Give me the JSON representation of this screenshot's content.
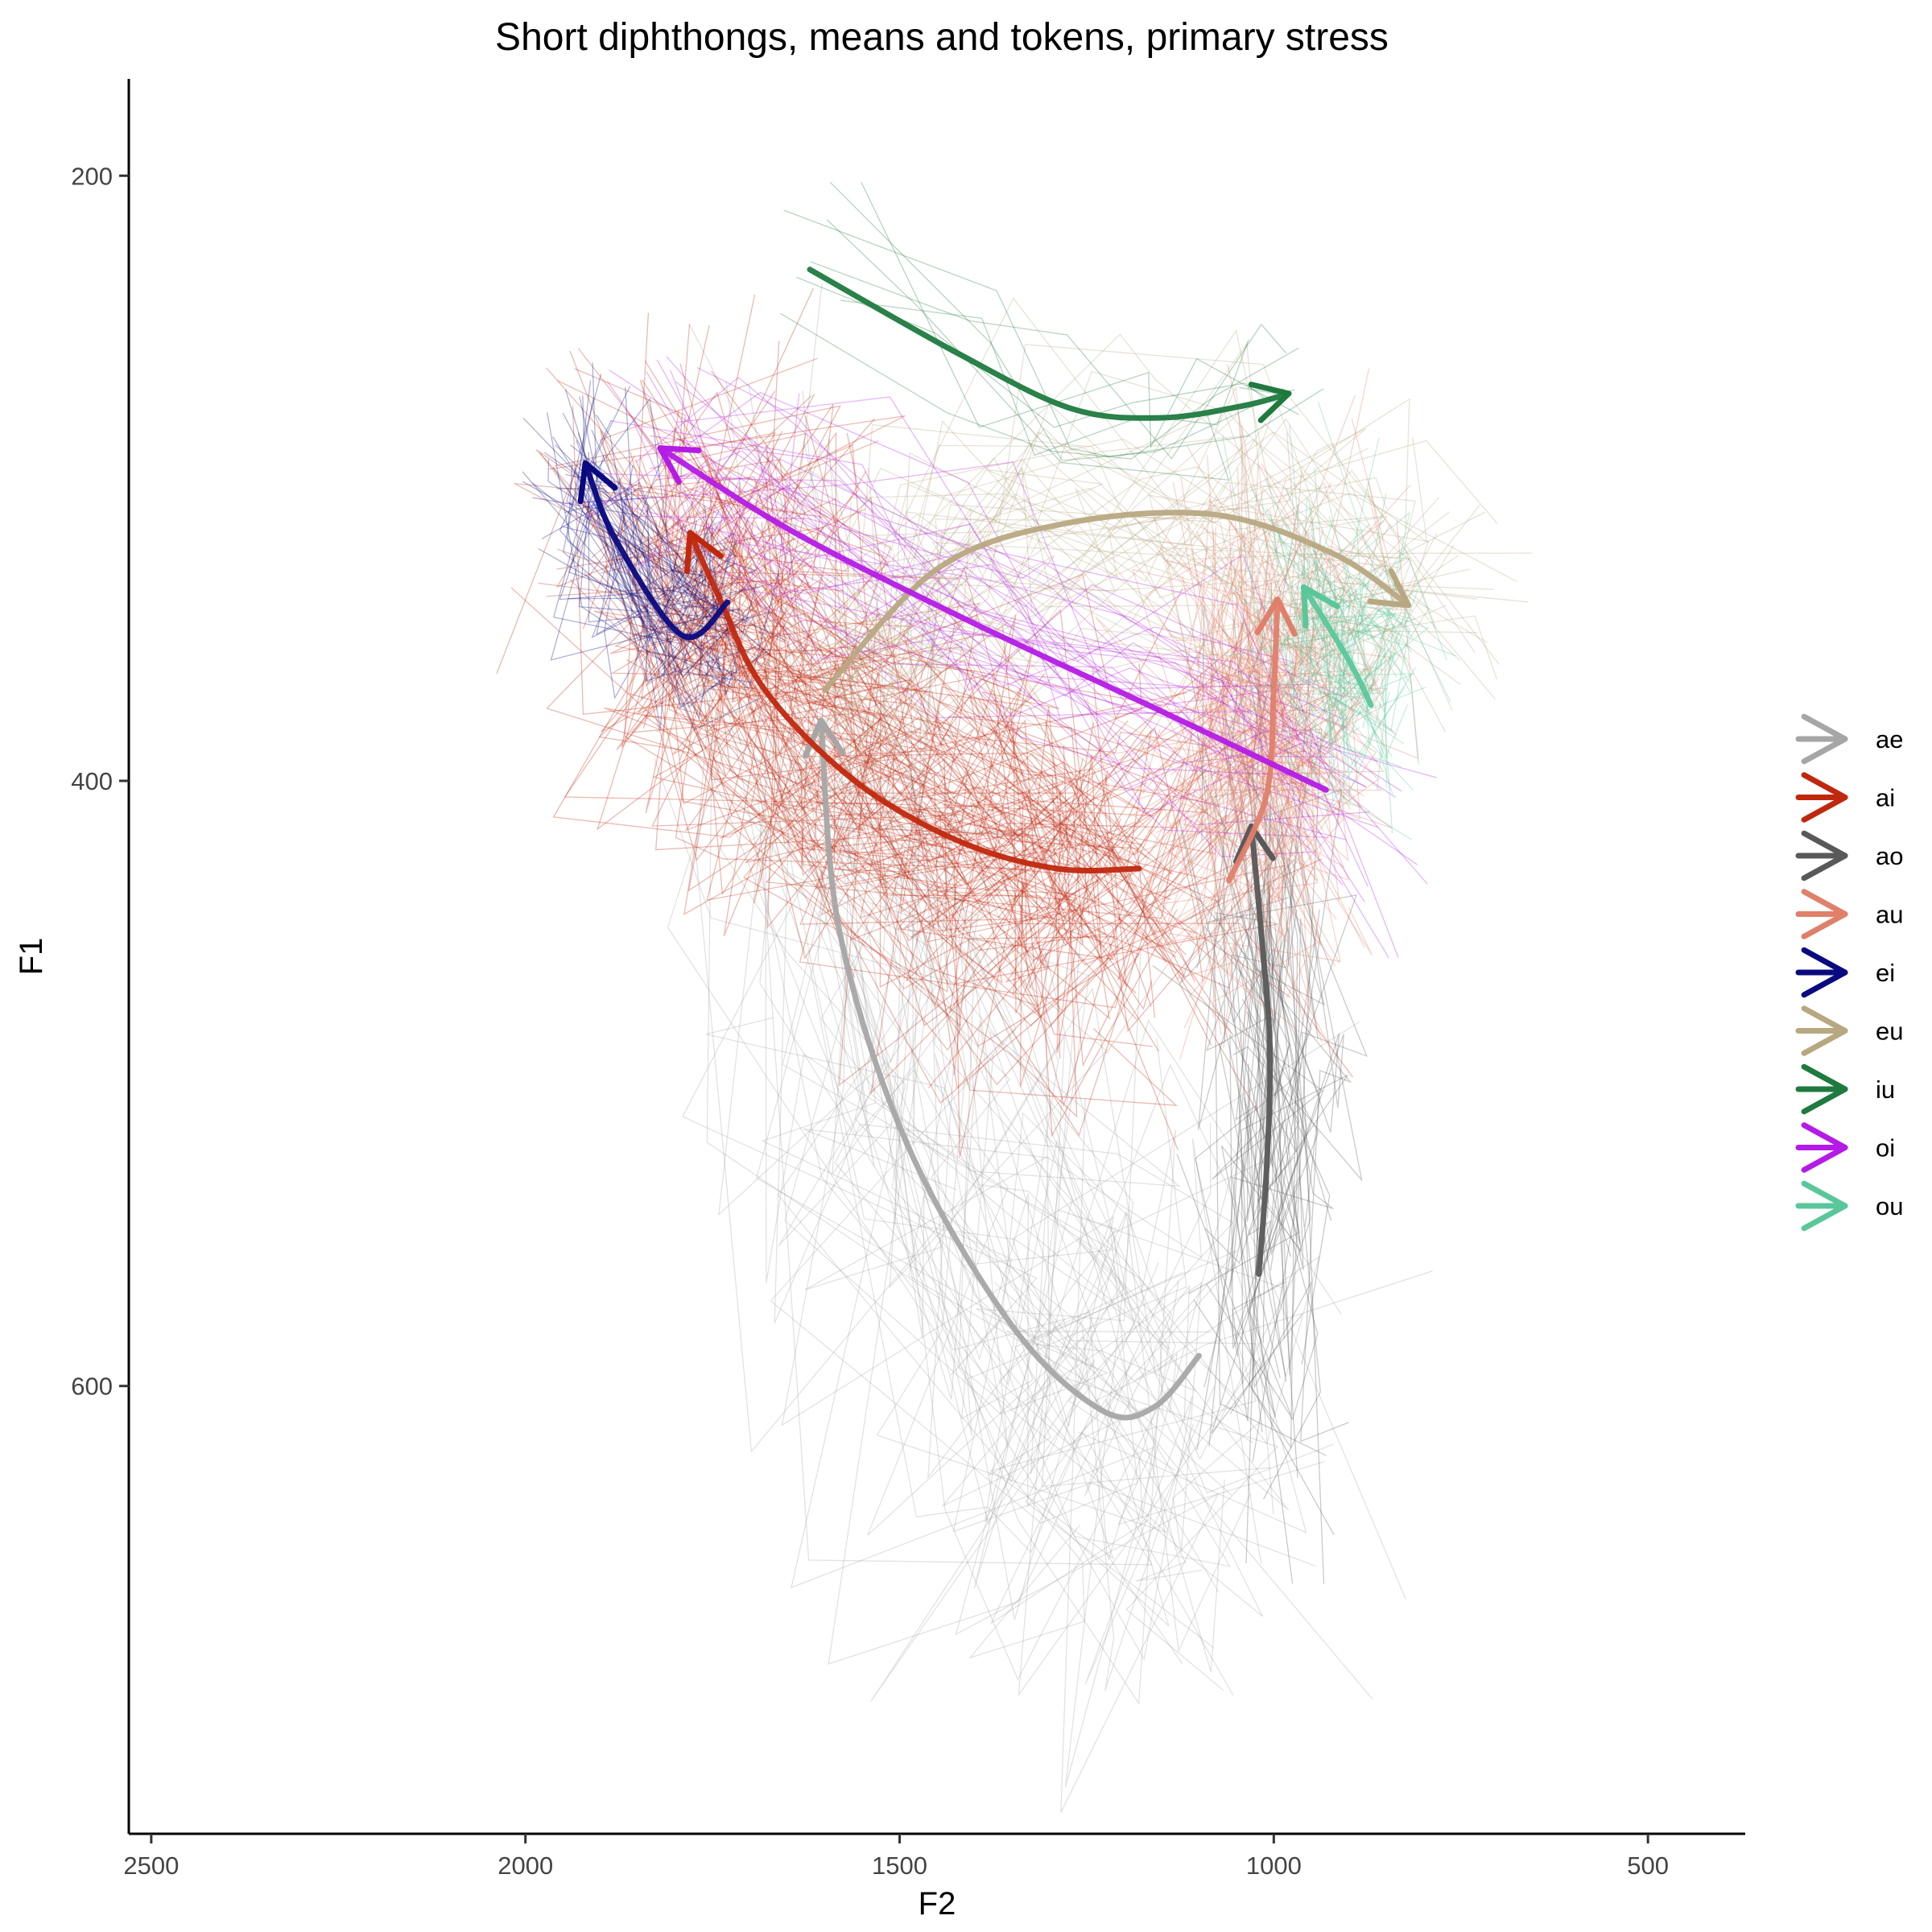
{
  "chart_data": {
    "type": "line",
    "title": "Short diphthongs, means and tokens, primary stress",
    "xlabel": "F2",
    "ylabel": "F1",
    "x_reversed": true,
    "y_reversed": true,
    "xlim": [
      2530,
      370
    ],
    "ylim": [
      168,
      748
    ],
    "x_ticks": [
      2500,
      2000,
      1500,
      1000,
      500
    ],
    "y_ticks": [
      200,
      400,
      600
    ],
    "grid": false,
    "legend_position": "right",
    "series": [
      {
        "name": "ae",
        "color": "#a6a6a6",
        "points": [
          [
            1100,
            590
          ],
          [
            1160,
            607
          ],
          [
            1230,
            608
          ],
          [
            1350,
            580
          ],
          [
            1490,
            520
          ],
          [
            1580,
            450
          ],
          [
            1605,
            380
          ]
        ]
      },
      {
        "name": "ai",
        "color": "#c0280e",
        "points": [
          [
            1180,
            429
          ],
          [
            1290,
            429
          ],
          [
            1420,
            420
          ],
          [
            1560,
            400
          ],
          [
            1680,
            370
          ],
          [
            1740,
            340
          ],
          [
            1780,
            318
          ]
        ]
      },
      {
        "name": "ao",
        "color": "#595959",
        "points": [
          [
            1020,
            563
          ],
          [
            1010,
            530
          ],
          [
            1005,
            490
          ],
          [
            1015,
            455
          ],
          [
            1030,
            415
          ]
        ]
      },
      {
        "name": "au",
        "color": "#e0806a",
        "points": [
          [
            1060,
            433
          ],
          [
            1010,
            405
          ],
          [
            1000,
            370
          ],
          [
            995,
            340
          ]
        ]
      },
      {
        "name": "ei",
        "color": "#0a0a80",
        "points": [
          [
            1730,
            341
          ],
          [
            1790,
            352
          ],
          [
            1880,
            320
          ],
          [
            1920,
            295
          ]
        ]
      },
      {
        "name": "eu",
        "color": "#b8a882",
        "points": [
          [
            1600,
            370
          ],
          [
            1450,
            330
          ],
          [
            1280,
            315
          ],
          [
            1080,
            312
          ],
          [
            920,
            325
          ],
          [
            820,
            342
          ]
        ]
      },
      {
        "name": "iu",
        "color": "#1f7a3f",
        "points": [
          [
            1620,
            231
          ],
          [
            1420,
            259
          ],
          [
            1270,
            277
          ],
          [
            1150,
            280
          ],
          [
            1040,
            276
          ],
          [
            980,
            272
          ]
        ]
      },
      {
        "name": "oi",
        "color": "#b41be6",
        "points": [
          [
            930,
            403
          ],
          [
            1150,
            377
          ],
          [
            1400,
            348
          ],
          [
            1640,
            318
          ],
          [
            1820,
            290
          ]
        ]
      },
      {
        "name": "ou",
        "color": "#5ac79b",
        "points": [
          [
            870,
            375
          ],
          [
            900,
            360
          ],
          [
            960,
            336
          ]
        ]
      }
    ]
  },
  "legend": [
    {
      "label": "ae",
      "color": "#a6a6a6"
    },
    {
      "label": "ai",
      "color": "#c0280e"
    },
    {
      "label": "ao",
      "color": "#595959"
    },
    {
      "label": "au",
      "color": "#e0806a"
    },
    {
      "label": "ei",
      "color": "#0a0a80"
    },
    {
      "label": "eu",
      "color": "#b8a882"
    },
    {
      "label": "iu",
      "color": "#1f7a3f"
    },
    {
      "label": "oi",
      "color": "#b41be6"
    },
    {
      "label": "ou",
      "color": "#5ac79b"
    }
  ]
}
